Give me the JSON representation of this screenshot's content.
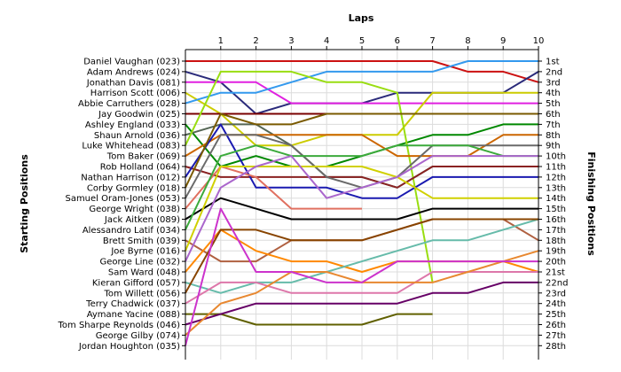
{
  "chart_data": {
    "type": "line",
    "title": "Laps",
    "ylabel_left": "Starting Positions",
    "ylabel_right": "Finishing Positions",
    "x": [
      0,
      1,
      2,
      3,
      4,
      5,
      6,
      7,
      8,
      9,
      10
    ],
    "x_tick_labels": [
      "1",
      "2",
      "3",
      "4",
      "5",
      "6",
      "7",
      "8",
      "9",
      "10"
    ],
    "starting_labels": [
      "Daniel Vaughan (023)",
      "Adam Andrews (024)",
      "Jonathan Davis (081)",
      "Harrison Scott (006)",
      "Abbie Carruthers (028)",
      "Jay Goodwin (025)",
      "Ashley England (033)",
      "Shaun Arnold (036)",
      "Luke Whitehead (083)",
      "Tom Baker (069)",
      "Rob Holland (064)",
      "Nathan Harrison (012)",
      "Corby Gormley (018)",
      "Samuel Oram-Jones (053)",
      "George Wright (038)",
      "Jack Aitken (089)",
      "Alessandro Latif (034)",
      "Brett Smith (039)",
      "Joe Byrne (016)",
      "George Line (032)",
      "Sam Ward (048)",
      "Kieran Gifford (057)",
      "Tom Willett (056)",
      "Terry Chadwick (037)",
      "Aymane Yacine (088)",
      "Tom Sharpe Reynolds (046)",
      "George Gilby (074)",
      "Jordan Houghton (035)"
    ],
    "finishing_labels": [
      "1st",
      "2nd",
      "3rd",
      "4th",
      "5th",
      "6th",
      "7th",
      "8th",
      "9th",
      "10th",
      "11th",
      "12th",
      "13th",
      "14th",
      "15th",
      "16th",
      "17th",
      "18th",
      "19th",
      "20th",
      "21st",
      "22nd",
      "23rd",
      "24th",
      "25th",
      "26th",
      "27th",
      "28th"
    ],
    "series": [
      {
        "color": "#cc1111",
        "values": [
          1,
          1,
          1,
          1,
          1,
          1,
          1,
          1,
          2,
          2,
          3
        ]
      },
      {
        "color": "#2a2a7a",
        "values": [
          2,
          3,
          6,
          5,
          5,
          5,
          4,
          4,
          4,
          4,
          2
        ]
      },
      {
        "color": "#e020e0",
        "values": [
          3,
          3,
          3,
          5,
          5,
          5,
          5,
          5,
          5,
          5,
          5
        ]
      },
      {
        "color": "#cccc00",
        "values": [
          4,
          6,
          9,
          9,
          8,
          8,
          8,
          4,
          4,
          4,
          4
        ]
      },
      {
        "color": "#3399ee",
        "values": [
          5,
          4,
          4,
          3,
          2,
          2,
          2,
          2,
          1,
          1,
          1
        ]
      },
      {
        "color": "#7a0000",
        "values": [
          6,
          6,
          6,
          6,
          6,
          6,
          6,
          6,
          6,
          6,
          6
        ]
      },
      {
        "color": "#008800",
        "values": [
          7,
          11,
          10,
          11,
          11,
          10,
          9,
          8,
          8,
          7,
          7
        ]
      },
      {
        "color": "#556655",
        "values": [
          8,
          7,
          7,
          9,
          12,
          12,
          13,
          11,
          11,
          11,
          11
        ]
      },
      {
        "color": "#99dd11",
        "values": [
          9,
          2,
          2,
          2,
          3,
          3,
          4,
          22,
          null,
          null,
          null
        ]
      },
      {
        "color": "#cc6600",
        "values": [
          10,
          8,
          8,
          8,
          8,
          8,
          10,
          10,
          10,
          8,
          8
        ]
      },
      {
        "color": "#8a2222",
        "values": [
          11,
          12,
          12,
          12,
          12,
          12,
          13,
          11,
          11,
          11,
          11
        ]
      },
      {
        "color": "#1a1ab0",
        "values": [
          12,
          7,
          13,
          13,
          13,
          14,
          14,
          12,
          12,
          12,
          12
        ]
      },
      {
        "color": "#7a5a00",
        "values": [
          13,
          6,
          7,
          7,
          6,
          6,
          6,
          6,
          6,
          6,
          6
        ]
      },
      {
        "color": "#6a6a6a",
        "values": [
          14,
          8,
          8,
          9,
          12,
          13,
          12,
          9,
          9,
          9,
          9
        ]
      },
      {
        "color": "#e07060",
        "values": [
          15,
          11,
          12,
          15,
          15,
          15,
          null,
          null,
          null,
          null,
          null
        ]
      },
      {
        "color": "#000000",
        "values": [
          16,
          14,
          15,
          16,
          16,
          16,
          16,
          15,
          15,
          15,
          15
        ]
      },
      {
        "color": "#3caa3c",
        "values": [
          17,
          10,
          9,
          10,
          10,
          10,
          9,
          9,
          9,
          10,
          10
        ]
      },
      {
        "color": "#b06040",
        "values": [
          18,
          20,
          20,
          18,
          18,
          18,
          17,
          16,
          16,
          16,
          18
        ]
      },
      {
        "color": "#d0d000",
        "values": [
          19,
          11,
          11,
          11,
          11,
          11,
          12,
          14,
          14,
          14,
          14
        ]
      },
      {
        "color": "#aa66cc",
        "values": [
          20,
          13,
          11,
          10,
          14,
          13,
          12,
          10,
          10,
          10,
          10
        ]
      },
      {
        "color": "#ff8800",
        "values": [
          21,
          17,
          19,
          20,
          20,
          21,
          20,
          20,
          20,
          20,
          21
        ]
      },
      {
        "color": "#66bbaa",
        "values": [
          22,
          23,
          22,
          22,
          21,
          20,
          19,
          18,
          18,
          17,
          16
        ]
      },
      {
        "color": "#884400",
        "values": [
          23,
          17,
          17,
          18,
          18,
          18,
          17,
          16,
          16,
          16,
          16
        ]
      },
      {
        "color": "#dd77aa",
        "values": [
          24,
          22,
          22,
          23,
          23,
          23,
          23,
          21,
          21,
          21,
          21
        ]
      },
      {
        "color": "#606000",
        "values": [
          25,
          25,
          26,
          26,
          26,
          26,
          25,
          25,
          null,
          null,
          null
        ]
      },
      {
        "color": "#660066",
        "values": [
          26,
          25,
          24,
          24,
          24,
          24,
          24,
          23,
          23,
          22,
          22
        ]
      },
      {
        "color": "#e88830",
        "values": [
          27,
          24,
          23,
          21,
          21,
          22,
          22,
          22,
          21,
          20,
          19
        ]
      },
      {
        "color": "#cc33cc",
        "values": [
          28,
          15,
          21,
          21,
          22,
          22,
          20,
          20,
          20,
          20,
          20
        ]
      }
    ]
  }
}
